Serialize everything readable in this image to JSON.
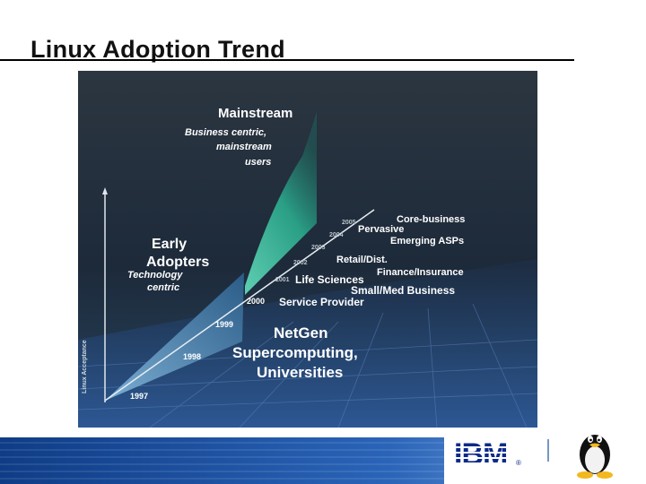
{
  "slide": {
    "title": "Linux Adoption Trend"
  },
  "phases": {
    "mainstream": {
      "title": "Mainstream",
      "desc": [
        "Business centric,",
        "mainstream",
        "users"
      ]
    },
    "early": {
      "title": [
        "Early",
        "Adopters"
      ],
      "desc": [
        "Technology",
        "centric"
      ]
    },
    "netgen": {
      "title": [
        "NetGen",
        "Supercomputing,",
        "Universities"
      ]
    }
  },
  "years": [
    "1997",
    "1998",
    "1999",
    "2000",
    "2001",
    "2002",
    "2003",
    "2004",
    "2005"
  ],
  "y_axis_label": "Linux Acceptance",
  "segments": {
    "service_provider": "Service Provider",
    "life_sciences": "Life Sciences",
    "small_med": "Small/Med Business",
    "retail": "Retail/Dist.",
    "finance": "Finance/Insurance",
    "emerging": "Emerging ASPs",
    "pervasive": "Pervasive",
    "core": "Core-business"
  },
  "footer": {
    "brand": "IBM",
    "trademark": "®"
  },
  "colors": {
    "early_fill": "#3a78a8",
    "mainstream_fill": "#2aa58a",
    "footer_blue": "#1c4fa0",
    "ibm_blue": "#0a2a8a"
  }
}
